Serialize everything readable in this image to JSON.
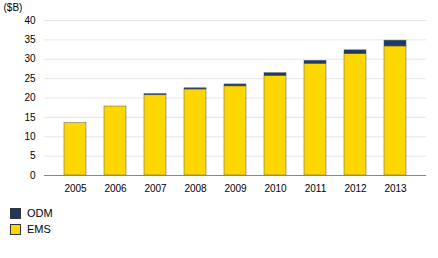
{
  "chart_data": {
    "type": "bar",
    "stacked": true,
    "categories": [
      "2005",
      "2006",
      "2007",
      "2008",
      "2009",
      "2010",
      "2011",
      "2012",
      "2013"
    ],
    "series": [
      {
        "name": "EMS",
        "color": "#FFD700",
        "values": [
          13.5,
          17.8,
          20.7,
          22.2,
          23.0,
          25.7,
          28.8,
          31.3,
          33.3
        ]
      },
      {
        "name": "ODM",
        "color": "#1F3864",
        "values": [
          0.0,
          0.0,
          0.3,
          0.3,
          0.5,
          0.7,
          0.8,
          1.0,
          1.5
        ]
      }
    ],
    "ylabel": "($B)",
    "ylim": [
      0,
      40
    ],
    "yticks": [
      0,
      5,
      10,
      15,
      20,
      25,
      30,
      35,
      40
    ],
    "grid": true,
    "legend": "lower left"
  }
}
